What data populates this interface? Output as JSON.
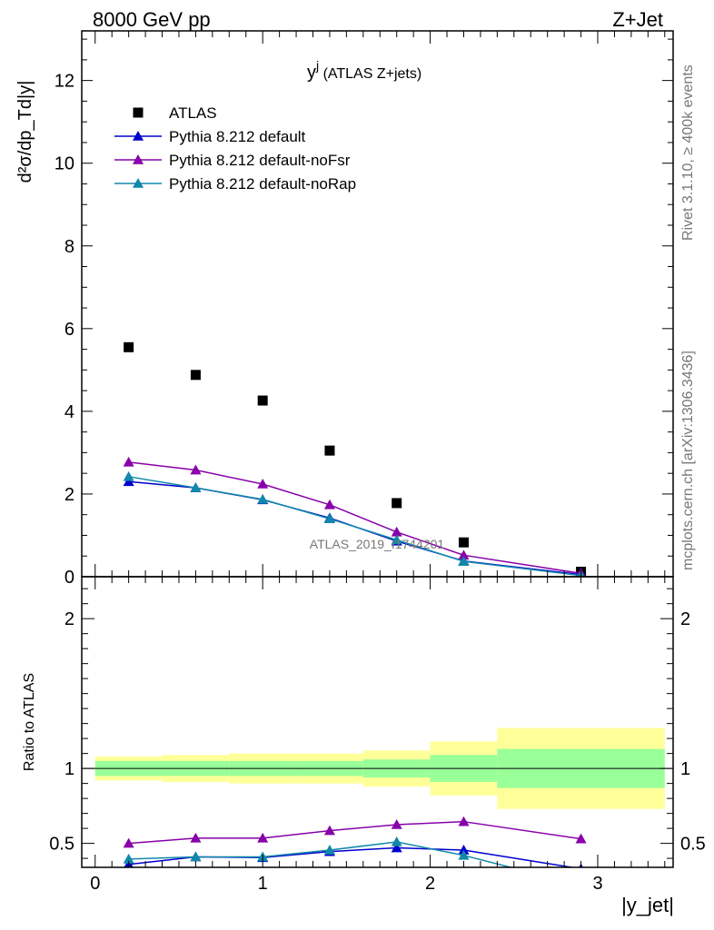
{
  "header": {
    "left": "8000 GeV pp",
    "right": "Z+Jet"
  },
  "side_notes": {
    "rivet": "Rivet 3.1.10, ≥ 400k events",
    "mcplots": "mcplots.cern.ch [arXiv:1306.3436]"
  },
  "chart_data": [
    {
      "type": "scatter",
      "panel": "main",
      "title_main": "y",
      "title_sup": "j",
      "title_rest": " (ATLAS Z+jets)",
      "ylabel": "d²σ/dp_Td|y|",
      "watermark": "ATLAS_2019_I1744201",
      "xlim": [
        -0.08,
        3.45
      ],
      "ylim": [
        0,
        13.2
      ],
      "yticks": [
        0,
        2,
        4,
        6,
        8,
        10,
        12
      ],
      "ytick_labels": [
        "0",
        "2",
        "4",
        "6",
        "8",
        "10",
        "12"
      ],
      "legend": [
        "ATLAS",
        "Pythia 8.212 default",
        "Pythia 8.212 default-noFsr",
        "Pythia 8.212 default-noRap"
      ],
      "series": [
        {
          "name": "ATLAS",
          "color": "#000000",
          "marker": "square",
          "x": [
            0.2,
            0.6,
            1.0,
            1.4,
            1.8,
            2.2,
            2.9
          ],
          "y": [
            5.55,
            4.88,
            4.26,
            3.05,
            1.78,
            0.83,
            0.12
          ]
        },
        {
          "name": "Pythia 8.212 default",
          "color": "#0000cc",
          "marker": "triangle",
          "x": [
            0.2,
            0.6,
            1.0,
            1.4,
            1.8,
            2.2,
            2.9
          ],
          "y": [
            2.3,
            2.15,
            1.86,
            1.42,
            0.86,
            0.38,
            0.05
          ]
        },
        {
          "name": "Pythia 8.212 default-noFsr",
          "color": "#8800aa",
          "marker": "triangle",
          "x": [
            0.2,
            0.6,
            1.0,
            1.4,
            1.8,
            2.2,
            2.9
          ],
          "y": [
            2.77,
            2.58,
            2.24,
            1.74,
            1.08,
            0.52,
            0.08
          ]
        },
        {
          "name": "Pythia 8.212 default-noRap",
          "color": "#1188aa",
          "marker": "triangle",
          "x": [
            0.2,
            0.6,
            1.0,
            1.4,
            1.8,
            2.2,
            2.9
          ],
          "y": [
            2.42,
            2.15,
            1.87,
            1.4,
            0.89,
            0.37,
            0.03
          ]
        }
      ]
    },
    {
      "type": "line",
      "panel": "ratio",
      "ylabel": "Ratio to ATLAS",
      "xlabel": "|y_jet|",
      "xlim": [
        -0.08,
        3.45
      ],
      "ylim": [
        0.34,
        2.28
      ],
      "yticks": [
        0.5,
        1,
        2
      ],
      "ytick_labels": [
        "0.5",
        "1",
        "2"
      ],
      "xticks": [
        0,
        1,
        2,
        3
      ],
      "xtick_labels": [
        "0",
        "1",
        "2",
        "3"
      ],
      "bands": {
        "edges": [
          0,
          0.4,
          0.8,
          1.2,
          1.6,
          2.0,
          2.4,
          3.4
        ],
        "stat_low": [
          0.95,
          0.95,
          0.95,
          0.95,
          0.94,
          0.91,
          0.87
        ],
        "stat_high": [
          1.05,
          1.05,
          1.05,
          1.05,
          1.06,
          1.09,
          1.13
        ],
        "total_low": [
          0.92,
          0.91,
          0.9,
          0.9,
          0.88,
          0.82,
          0.73
        ],
        "total_high": [
          1.08,
          1.09,
          1.1,
          1.1,
          1.12,
          1.18,
          1.27
        ],
        "stat_color": "#99ff99",
        "total_color": "#ffff99"
      },
      "series": [
        {
          "name": "Pythia 8.212 default",
          "color": "#0000cc",
          "x": [
            0.2,
            0.6,
            1.0,
            1.4,
            1.8,
            2.2,
            2.9
          ],
          "y": [
            0.36,
            0.41,
            0.405,
            0.445,
            0.47,
            0.455,
            0.33
          ]
        },
        {
          "name": "Pythia 8.212 default-noFsr",
          "color": "#8800aa",
          "x": [
            0.2,
            0.6,
            1.0,
            1.4,
            1.8,
            2.2,
            2.9
          ],
          "y": [
            0.5,
            0.535,
            0.535,
            0.585,
            0.625,
            0.645,
            0.53
          ]
        },
        {
          "name": "Pythia 8.212 default-noRap",
          "color": "#1188aa",
          "x": [
            0.2,
            0.6,
            1.0,
            1.4,
            1.8,
            2.2,
            2.9
          ],
          "y": [
            0.395,
            0.41,
            0.41,
            0.455,
            0.51,
            0.42,
            0.22
          ]
        }
      ]
    }
  ]
}
